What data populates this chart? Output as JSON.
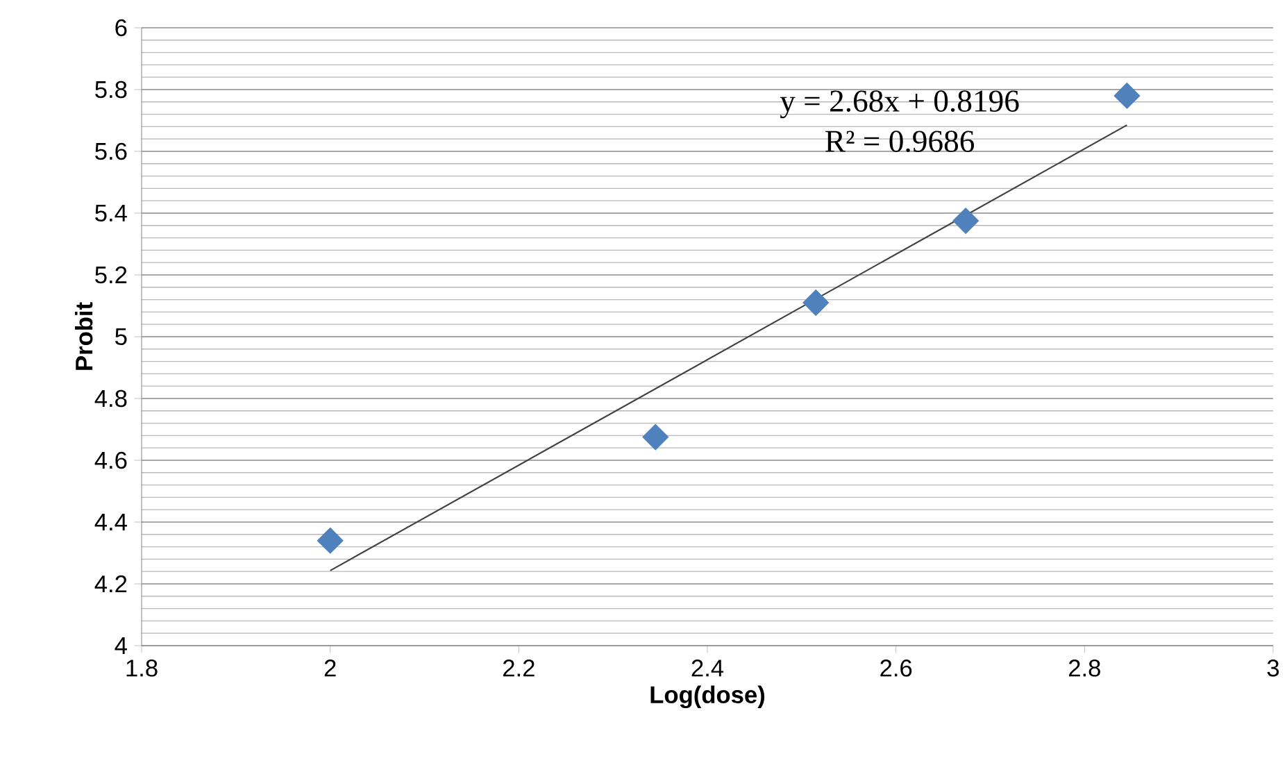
{
  "chart_data": {
    "type": "scatter",
    "xlabel": "Log(dose)",
    "ylabel": "Probit",
    "xlim": [
      1.8,
      3
    ],
    "xticks": [
      1.8,
      2,
      2.2,
      2.4,
      2.6,
      2.8,
      3
    ],
    "ylim": [
      4,
      6
    ],
    "yticks": [
      4,
      4.2,
      4.4,
      4.6,
      4.8,
      5,
      5.2,
      5.4,
      5.6,
      5.8,
      6
    ],
    "grid": "y",
    "marker": "diamond",
    "series": [
      {
        "color": "#4f81bd",
        "x": [
          2.0,
          2.345,
          2.515,
          2.674,
          2.845
        ],
        "values": [
          4.34,
          4.675,
          5.11,
          5.375,
          5.78
        ]
      },
      {
        "type": "line",
        "color": "#404040",
        "marker": "none",
        "x": [
          2.0,
          2.845
        ],
        "values": [
          4.243,
          5.685
        ]
      }
    ],
    "annotations": [
      "y = 2.68x + 0.8196",
      "R² = 0.9686"
    ]
  }
}
